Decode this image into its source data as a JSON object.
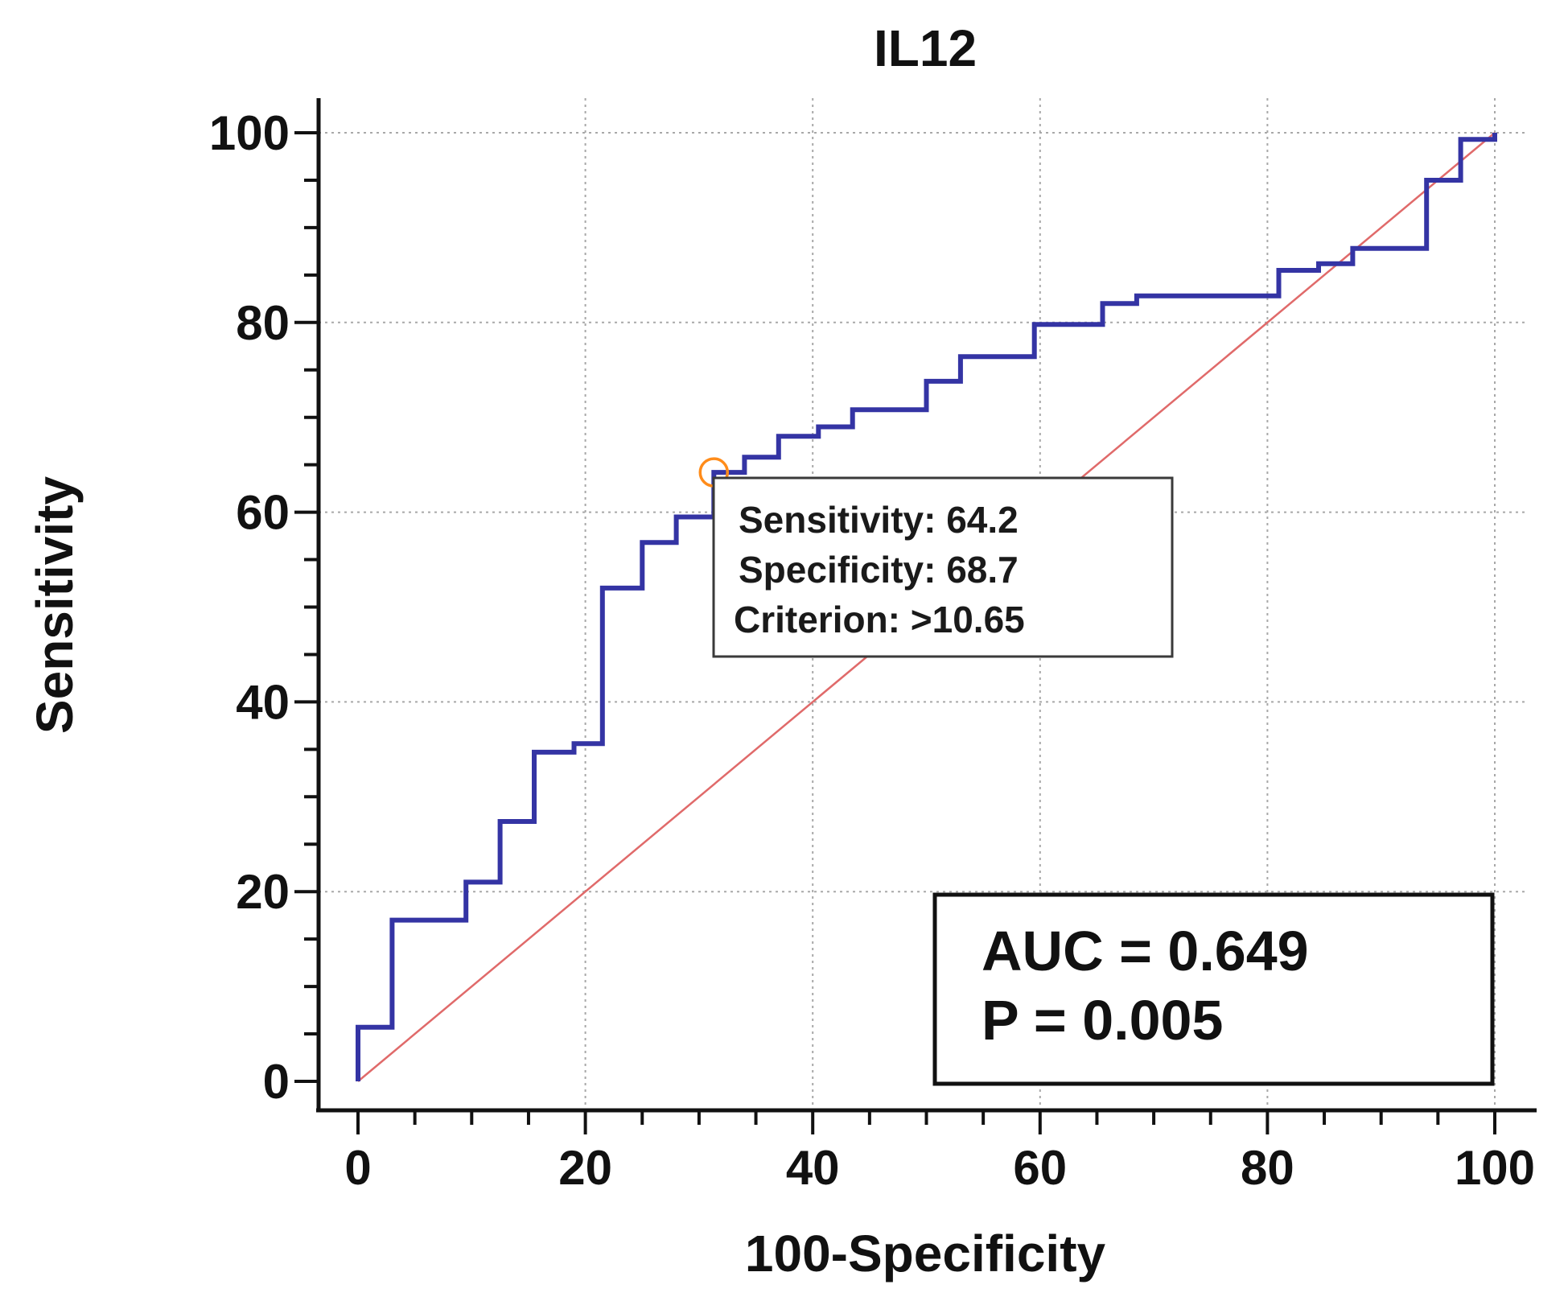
{
  "chart_data": {
    "type": "line",
    "title": "IL12",
    "xlabel": "100-Specificity",
    "ylabel": "Sensitivity",
    "xlim": [
      0,
      100
    ],
    "ylim": [
      0,
      100
    ],
    "x_ticks": [
      "0",
      "20",
      "40",
      "60",
      "80",
      "100"
    ],
    "y_ticks": [
      "0",
      "20",
      "40",
      "60",
      "80",
      "100"
    ],
    "grid": true,
    "series": [
      {
        "values": [
          [
            0,
            0
          ],
          [
            0,
            5.7
          ],
          [
            3,
            5.7
          ],
          [
            3,
            17
          ],
          [
            9.5,
            17
          ],
          [
            9.5,
            21
          ],
          [
            12.5,
            21
          ],
          [
            12.5,
            27.4
          ],
          [
            15.5,
            27.4
          ],
          [
            15.5,
            34.7
          ],
          [
            19,
            34.7
          ],
          [
            19,
            35.6
          ],
          [
            21.5,
            35.6
          ],
          [
            21.5,
            52
          ],
          [
            25,
            52
          ],
          [
            25,
            56.8
          ],
          [
            28,
            56.8
          ],
          [
            28,
            59.5
          ],
          [
            31.3,
            59.5
          ],
          [
            31.3,
            64.2
          ],
          [
            34,
            64.2
          ],
          [
            34,
            65.8
          ],
          [
            37,
            65.8
          ],
          [
            37,
            68
          ],
          [
            40.5,
            68
          ],
          [
            40.5,
            69
          ],
          [
            43.5,
            69
          ],
          [
            43.5,
            70.8
          ],
          [
            50,
            70.8
          ],
          [
            50,
            73.8
          ],
          [
            53,
            73.8
          ],
          [
            53,
            76.4
          ],
          [
            59.5,
            76.4
          ],
          [
            59.5,
            79.8
          ],
          [
            65.5,
            79.8
          ],
          [
            65.5,
            82
          ],
          [
            68.5,
            82
          ],
          [
            68.5,
            82.8
          ],
          [
            81,
            82.8
          ],
          [
            81,
            85.5
          ],
          [
            84.5,
            85.5
          ],
          [
            84.5,
            86.2
          ],
          [
            87.5,
            86.2
          ],
          [
            87.5,
            87.8
          ],
          [
            94,
            87.8
          ],
          [
            94,
            95
          ],
          [
            97,
            95
          ],
          [
            97,
            99.3
          ],
          [
            100,
            99.3
          ],
          [
            100,
            100
          ]
        ],
        "color": "#3434a4"
      },
      {
        "values": [
          [
            0,
            0
          ],
          [
            100,
            100
          ]
        ],
        "color": "#e06a6a"
      }
    ],
    "optimal_point": {
      "x": 31.3,
      "y": 64.2,
      "color": "#ff8c1a"
    },
    "annotation": {
      "sensitivity": "Sensitivity: 64.2",
      "specificity": "Specificity: 68.7",
      "criterion": "Criterion: >10.65"
    },
    "stats": {
      "auc": "AUC = 0.649",
      "p": "P = 0.005"
    }
  }
}
